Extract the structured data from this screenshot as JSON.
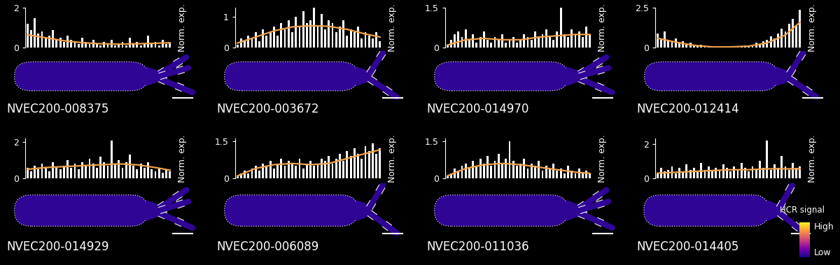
{
  "chart_data": [
    {
      "type": "bar",
      "title": "NVEC200-008375",
      "ylabel": "Norm. exp.",
      "ylim": [
        0,
        2
      ],
      "yticks": [
        0,
        2
      ],
      "tick_labels": "y",
      "color": "#ffffff",
      "values": [
        1.2,
        0.9,
        1.5,
        0.7,
        0.8,
        0.5,
        0.6,
        0.9,
        0.4,
        0.5,
        0.3,
        0.6,
        0.4,
        0.3,
        0.2,
        0.5,
        0.3,
        0.2,
        0.4,
        0.2,
        0.1,
        0.3,
        0.2,
        0.4,
        0.1,
        0.2,
        0.3,
        0.1,
        0.5,
        0.2,
        0.3,
        0.1,
        0.2,
        0.6,
        0.2,
        0.3,
        0.1,
        0.4,
        0.2,
        0.3
      ],
      "trend": {
        "color": "#f0a04b",
        "x": [
          0,
          5,
          10,
          15,
          20,
          25,
          30,
          35,
          39
        ],
        "values": [
          0.65,
          0.5,
          0.35,
          0.25,
          0.2,
          0.18,
          0.2,
          0.22,
          0.25
        ]
      }
    },
    {
      "type": "bar",
      "title": "NVEC200-003672",
      "ylabel": "Norm. exp.",
      "ylim": [
        0,
        1.3
      ],
      "yticks": [
        0,
        1
      ],
      "tick_labels": "y",
      "color": "#ffffff",
      "values": [
        0.1,
        0.3,
        0.2,
        0.4,
        0.3,
        0.5,
        0.2,
        0.6,
        0.4,
        0.5,
        0.7,
        0.4,
        0.8,
        0.6,
        0.9,
        0.5,
        1.0,
        0.7,
        1.2,
        0.8,
        0.9,
        1.3,
        0.7,
        1.1,
        0.6,
        0.9,
        0.8,
        0.5,
        0.7,
        0.9,
        0.4,
        0.6,
        0.5,
        0.7,
        0.3,
        0.5,
        0.4,
        0.3,
        0.5,
        0.2
      ],
      "trend": {
        "color": "#f0a04b",
        "x": [
          0,
          5,
          10,
          15,
          20,
          25,
          30,
          35,
          39
        ],
        "values": [
          0.15,
          0.35,
          0.55,
          0.68,
          0.72,
          0.7,
          0.6,
          0.45,
          0.35
        ]
      }
    },
    {
      "type": "bar",
      "title": "NVEC200-014970",
      "ylabel": "Norm. exp.",
      "ylim": [
        0,
        1.5
      ],
      "yticks": [
        0,
        1.5
      ],
      "tick_labels": "y",
      "color": "#ffffff",
      "values": [
        0.1,
        0.3,
        0.5,
        0.6,
        0.4,
        0.7,
        0.3,
        0.5,
        0.2,
        0.4,
        0.6,
        0.3,
        0.2,
        0.4,
        0.3,
        0.5,
        0.2,
        0.3,
        0.4,
        0.2,
        0.3,
        0.5,
        0.4,
        0.3,
        0.6,
        0.4,
        0.5,
        0.7,
        0.4,
        0.3,
        0.6,
        1.5,
        0.5,
        0.4,
        0.7,
        0.5,
        0.6,
        0.4,
        0.8,
        0.5
      ],
      "trend": {
        "color": "#f0a04b",
        "x": [
          0,
          5,
          10,
          15,
          20,
          25,
          30,
          35,
          39
        ],
        "values": [
          0.1,
          0.3,
          0.35,
          0.3,
          0.3,
          0.4,
          0.45,
          0.5,
          0.5
        ]
      }
    },
    {
      "type": "bar",
      "title": "NVEC200-012414",
      "ylabel": "Norm. exp.",
      "ylim": [
        0,
        2.5
      ],
      "yticks": [
        0,
        2.5
      ],
      "tick_labels": "y",
      "color": "#ffffff",
      "values": [
        0.9,
        0.6,
        1.0,
        0.5,
        0.4,
        0.6,
        0.3,
        0.4,
        0.2,
        0.3,
        0.2,
        0.1,
        0.2,
        0.1,
        0.05,
        0.1,
        0.05,
        0.1,
        0.05,
        0.05,
        0.1,
        0.05,
        0.1,
        0.1,
        0.15,
        0.1,
        0.2,
        0.3,
        0.2,
        0.4,
        0.5,
        0.7,
        0.6,
        0.9,
        1.2,
        1.0,
        1.5,
        1.8,
        1.4,
        2.4
      ],
      "trend": {
        "color": "#f0a04b",
        "x": [
          0,
          5,
          10,
          15,
          20,
          25,
          30,
          35,
          39
        ],
        "values": [
          0.6,
          0.35,
          0.15,
          0.05,
          0.05,
          0.1,
          0.3,
          0.8,
          1.6
        ]
      }
    },
    {
      "type": "bar",
      "title": "NVEC200-014929",
      "ylabel": "Norm. exp.",
      "ylim": [
        0,
        2.2
      ],
      "yticks": [
        0,
        2
      ],
      "tick_labels": "y",
      "color": "#ffffff",
      "values": [
        0.6,
        0.4,
        0.7,
        0.5,
        0.8,
        0.6,
        0.4,
        0.9,
        0.6,
        0.5,
        0.7,
        1.0,
        0.6,
        0.8,
        0.5,
        0.9,
        0.7,
        1.1,
        0.8,
        0.6,
        1.2,
        0.9,
        0.7,
        2.1,
        0.8,
        1.0,
        0.6,
        0.9,
        1.3,
        0.7,
        0.5,
        0.8,
        0.6,
        0.9,
        0.5,
        0.4,
        0.6,
        0.3,
        0.5,
        0.4
      ],
      "trend": {
        "color": "#f0a04b",
        "x": [
          0,
          5,
          10,
          15,
          20,
          25,
          30,
          35,
          39
        ],
        "values": [
          0.5,
          0.6,
          0.65,
          0.7,
          0.75,
          0.8,
          0.75,
          0.6,
          0.45
        ]
      }
    },
    {
      "type": "bar",
      "title": "NVEC200-006089",
      "ylabel": "Norm. exp.",
      "ylim": [
        0,
        1.6
      ],
      "yticks": [
        0,
        1.5
      ],
      "tick_labels": "y",
      "color": "#ffffff",
      "values": [
        0.1,
        0.2,
        0.3,
        0.2,
        0.4,
        0.5,
        0.3,
        0.6,
        0.5,
        0.7,
        0.4,
        0.6,
        0.8,
        0.5,
        0.7,
        0.6,
        0.5,
        0.8,
        0.4,
        0.6,
        0.7,
        0.5,
        0.6,
        0.8,
        0.7,
        0.9,
        0.6,
        0.8,
        1.0,
        0.7,
        1.1,
        0.9,
        1.2,
        1.0,
        0.8,
        1.3,
        1.1,
        1.4,
        1.0,
        1.2
      ],
      "trend": {
        "color": "#f0a04b",
        "x": [
          0,
          5,
          10,
          15,
          20,
          25,
          30,
          35,
          39
        ],
        "values": [
          0.1,
          0.4,
          0.55,
          0.6,
          0.55,
          0.6,
          0.8,
          1.0,
          1.15
        ]
      }
    },
    {
      "type": "bar",
      "title": "NVEC200-011036",
      "ylabel": "Norm. exp.",
      "ylim": [
        0,
        1.6
      ],
      "yticks": [
        0,
        1.5
      ],
      "tick_labels": "y",
      "color": "#ffffff",
      "values": [
        0.1,
        0.2,
        0.4,
        0.3,
        0.5,
        0.6,
        0.4,
        0.7,
        0.5,
        0.8,
        0.6,
        0.9,
        0.5,
        0.7,
        1.0,
        0.6,
        0.8,
        1.5,
        0.7,
        0.5,
        0.6,
        0.8,
        0.4,
        0.6,
        0.5,
        0.7,
        0.3,
        0.5,
        0.4,
        0.6,
        0.3,
        0.4,
        0.2,
        0.5,
        0.3,
        0.2,
        0.4,
        0.2,
        0.3,
        0.2
      ],
      "trend": {
        "color": "#f0a04b",
        "x": [
          0,
          5,
          10,
          15,
          20,
          25,
          30,
          35,
          39
        ],
        "values": [
          0.1,
          0.4,
          0.55,
          0.6,
          0.55,
          0.45,
          0.35,
          0.25,
          0.2
        ]
      }
    },
    {
      "type": "bar",
      "title": "NVEC200-014405",
      "ylabel": "Norm. exp.",
      "ylim": [
        0,
        2.3
      ],
      "yticks": [
        0,
        2
      ],
      "tick_labels": "y",
      "color": "#ffffff",
      "values": [
        0.3,
        0.6,
        0.4,
        0.5,
        0.7,
        0.3,
        0.6,
        0.4,
        0.8,
        0.5,
        0.6,
        0.4,
        0.9,
        0.5,
        0.7,
        0.4,
        0.6,
        0.5,
        0.8,
        0.6,
        0.4,
        0.7,
        0.5,
        0.9,
        0.6,
        0.4,
        0.7,
        0.5,
        1.0,
        0.6,
        2.2,
        0.5,
        0.8,
        0.6,
        1.3,
        0.7,
        0.5,
        0.9,
        0.6,
        0.7
      ],
      "trend": {
        "color": "#f0a04b",
        "x": [
          0,
          5,
          10,
          15,
          20,
          25,
          30,
          35,
          39
        ],
        "values": [
          0.3,
          0.35,
          0.4,
          0.45,
          0.5,
          0.5,
          0.55,
          0.55,
          0.55
        ]
      }
    }
  ],
  "colorbar": {
    "label": "HCR signal",
    "ticks": [
      "High",
      "Low"
    ]
  }
}
